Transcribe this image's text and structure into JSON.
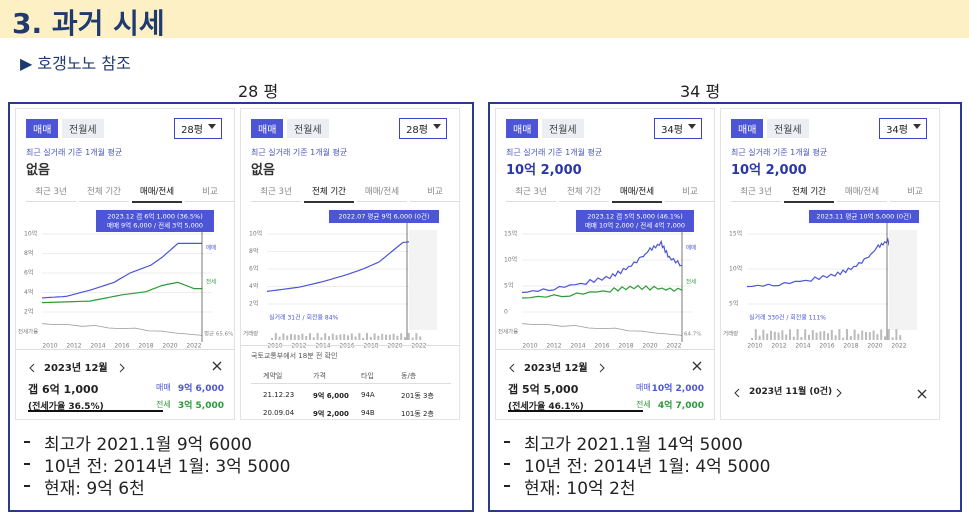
{
  "header": {
    "title": "3. 과거 시세",
    "subtitle": "▶ 호갱노노 참조"
  },
  "panels": [
    {
      "label": "28 평",
      "screens": [
        {
          "kind": "detail",
          "tabs": [
            "매매",
            "전월세"
          ],
          "size": "28평",
          "caption": "최근 실거래 기준 1개월 평균",
          "price": "없음",
          "periods": [
            "최근 3년",
            "전체 기간",
            "매매/전세",
            "비교"
          ],
          "tooltip": [
            "2023.12  갭 6억 1,000 (36.5%)",
            "매매 9억 6,000 / 전세 3억 5,000"
          ],
          "yticks": [
            "10억",
            "8억",
            "6억",
            "4억",
            "2억"
          ],
          "xticks": [
            "2010",
            "2012",
            "2014",
            "2016",
            "2018",
            "2020",
            "2022"
          ],
          "line_labels": [
            "매매",
            "전세",
            "평균 65.6%",
            "전세가율"
          ],
          "month": "2023년 12월",
          "gap": "갭 6억 1,000",
          "ratio": "(전세가율 36.5%)",
          "sale": [
            "매매",
            "9억 6,000"
          ],
          "jeonse": [
            "전세",
            "3억 5,000"
          ]
        },
        {
          "kind": "full",
          "tabs": [
            "매매",
            "전월세"
          ],
          "size": "28평",
          "caption": "최근 실거래 기준 1개월 평균",
          "price": "없음",
          "periods": [
            "최근 3년",
            "전체 기간",
            "매매/전세",
            "비교"
          ],
          "tooltip": [
            "2022.07 평균 9억 6,000 (0건)"
          ],
          "yticks": [
            "10억",
            "8억",
            "6억",
            "4억",
            "2억"
          ],
          "xticks": [
            "2010",
            "2012",
            "2014",
            "2016",
            "2018",
            "2020",
            "2022"
          ],
          "volume": "실거래 31건 / 회전율 84%",
          "volume_axis": "거래량",
          "source": "국토교통부에서 18분 전 확인",
          "table": {
            "header": [
              "계약일",
              "가격",
              "타입",
              "동/층"
            ],
            "rows": [
              [
                "21.12.23",
                "9억 6,000",
                "94A",
                "201동 3층"
              ],
              [
                "20.09.04",
                "9억 2,000",
                "94B",
                "101동 2층"
              ]
            ]
          }
        }
      ],
      "notes": [
        "최고가 2021.1월 9억 6000",
        "10년 전: 2014년 1월: 3억 5000",
        "현재: 9억 6천"
      ]
    },
    {
      "label": "34 평",
      "screens": [
        {
          "kind": "detail",
          "tabs": [
            "매매",
            "전월세"
          ],
          "size": "34평",
          "caption": "최근 실거래 기준 1개월 평균",
          "price": "10억 2,000",
          "periods": [
            "최근 3년",
            "전체 기간",
            "매매/전세",
            "비교"
          ],
          "tooltip": [
            "2023.12  갭 5억 5,000 (46.1%)",
            "매매 10억 2,000 / 전세 4억 7,000"
          ],
          "yticks": [
            "15억",
            "10억",
            "5억",
            "0"
          ],
          "xticks": [
            "2010",
            "2012",
            "2014",
            "2016",
            "2018",
            "2020",
            "2022"
          ],
          "line_labels": [
            "매매",
            "전세",
            "64.7%",
            "전세가율"
          ],
          "month": "2023년 12월",
          "gap": "갭 5억 5,000",
          "ratio": "(전세가율 46.1%)",
          "sale": [
            "매매",
            "10억 2,000"
          ],
          "jeonse": [
            "전세",
            "4억 7,000"
          ]
        },
        {
          "kind": "full",
          "tabs": [
            "매매",
            "전월세"
          ],
          "size": "34평",
          "caption": "최근 실거래 기준 1개월 평균",
          "price": "10억 2,000",
          "periods": [
            "최근 3년",
            "전체 기간",
            "매매/전세",
            "비교"
          ],
          "tooltip": [
            "2023.11 평균 10억 5,000 (0건)"
          ],
          "yticks": [
            "15억",
            "10억",
            "5억"
          ],
          "xticks": [
            "2010",
            "2012",
            "2014",
            "2016",
            "2018",
            "2020",
            "2022"
          ],
          "volume": "실거래 330건 / 회전율 111%",
          "volume_axis": "거래량",
          "month": "2023년 11월 (0건)"
        }
      ],
      "notes": [
        "최고가 2021.1월 14억 5000",
        "10년 전: 2014년 1월: 4억 5000",
        "현재: 10억 2천"
      ]
    }
  ]
}
